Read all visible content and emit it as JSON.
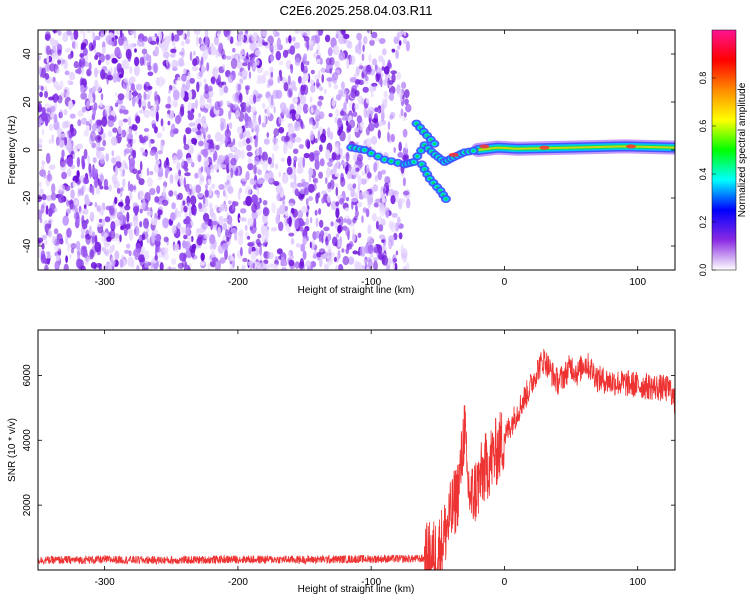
{
  "chart_data": [
    {
      "type": "heatmap",
      "title": "C2E6.2025.258.04.03.R11",
      "xlabel": "Height of straight line (km)",
      "ylabel": "Frequency (Hz)",
      "xlim": [
        -350,
        128
      ],
      "ylim": [
        -50,
        50
      ],
      "xticks": [
        -300,
        -200,
        -100,
        0,
        100
      ],
      "yticks": [
        -40,
        -20,
        0,
        20,
        40
      ],
      "noise_region_x": [
        -350,
        -72
      ],
      "signal_track": [
        {
          "x": -115,
          "y": 1
        },
        {
          "x": -105,
          "y": 0
        },
        {
          "x": -90,
          "y": -4
        },
        {
          "x": -75,
          "y": -6
        },
        {
          "x": -68,
          "y": -5
        },
        {
          "x": -60,
          "y": 2
        },
        {
          "x": -52,
          "y": -2
        },
        {
          "x": -45,
          "y": -5
        },
        {
          "x": -38,
          "y": -3
        },
        {
          "x": -30,
          "y": -1
        },
        {
          "x": -20,
          "y": 0
        },
        {
          "x": -5,
          "y": 1
        },
        {
          "x": 10,
          "y": 0.5
        },
        {
          "x": 50,
          "y": 1
        },
        {
          "x": 90,
          "y": 1.5
        },
        {
          "x": 128,
          "y": 1
        }
      ],
      "branch_up": [
        {
          "x": -66,
          "y": 11
        },
        {
          "x": -58,
          "y": 6
        },
        {
          "x": -50,
          "y": 1
        }
      ],
      "branch_down": [
        {
          "x": -62,
          "y": -6
        },
        {
          "x": -56,
          "y": -12
        },
        {
          "x": -48,
          "y": -17
        },
        {
          "x": -42,
          "y": -22
        }
      ],
      "colorbar": {
        "label": "Normalized spectral amplitude",
        "ticks": [
          "0.0",
          "0.2",
          "0.4",
          "0.6",
          "0.8"
        ],
        "range": [
          0,
          1
        ],
        "colors": [
          "#ffffff",
          "#8a2be2",
          "#0000ff",
          "#00ffff",
          "#00ff00",
          "#ffff00",
          "#ff8c00",
          "#ff0000",
          "#ff1493"
        ]
      }
    },
    {
      "type": "line",
      "title": "",
      "xlabel": "Height of straight line (km)",
      "ylabel": "SNR (10 * v/v)",
      "xlim": [
        -350,
        128
      ],
      "ylim": [
        0,
        7400
      ],
      "xticks": [
        -300,
        -200,
        -100,
        0,
        100
      ],
      "yticks": [
        2000,
        4000,
        6000
      ],
      "color": "#ee3333",
      "series": [
        {
          "x": [
            -350,
            -300,
            -250,
            -200,
            -150,
            -100,
            -60,
            -50,
            -45,
            -40,
            -35,
            -32,
            -30,
            -28,
            -25,
            -20,
            -15,
            -10,
            -5,
            0,
            5,
            10,
            20,
            25,
            30,
            35,
            40,
            45,
            50,
            55,
            60,
            65,
            70,
            80,
            90,
            100,
            110,
            120,
            125,
            128
          ],
          "values": [
            300,
            320,
            300,
            330,
            320,
            340,
            350,
            550,
            1100,
            1700,
            2400,
            3400,
            4500,
            2800,
            2200,
            2600,
            3100,
            3400,
            3700,
            4100,
            4500,
            4900,
            5700,
            6200,
            6500,
            6100,
            5800,
            6000,
            6300,
            6050,
            6400,
            6200,
            5900,
            5800,
            5750,
            5700,
            5650,
            5600,
            5550,
            5100
          ]
        }
      ]
    }
  ]
}
